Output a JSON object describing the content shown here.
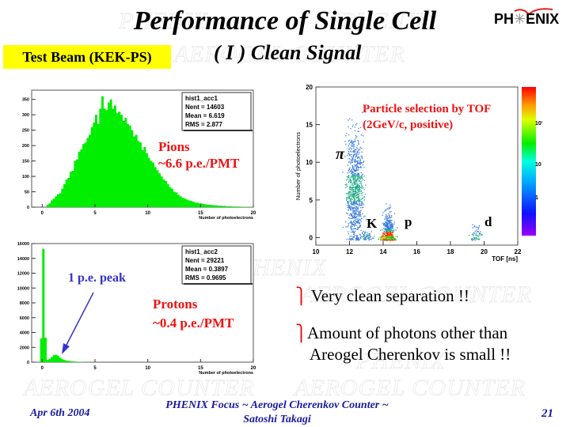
{
  "slide": {
    "title": "Performance of Single Cell",
    "subtitle": "( I ) Clean Signal",
    "badge": "Test Beam (KEK-PS)",
    "logo_text": "PH ENIX",
    "watermark": [
      "PHENIX",
      "AEROGEL COUNTER"
    ],
    "bullets": [
      {
        "marker": "⎫",
        "lines": [
          "Very clean separation !!"
        ]
      },
      {
        "marker": "⎫",
        "lines": [
          "Amount of photons other than",
          "Areogel Cherenkov is small !!"
        ]
      }
    ],
    "footer": {
      "date": "Apr 6th 2004",
      "center_line1": "PHENIX Focus  ~ Aerogel Cherenkov Counter ~",
      "center_line2": "Satoshi Takagi",
      "page": "21"
    },
    "colors": {
      "badge_bg": "#ffff00",
      "annotation_red": "#ee1111",
      "annotation_blue": "#3333cc",
      "footer_blue": "#1a1aa0",
      "hist_fill": "#00ee00"
    }
  },
  "chart_data": [
    {
      "type": "bar",
      "title": "hist1_acc1",
      "stats": {
        "name": "hist1_acc1",
        "nent": "Nent = 14603",
        "mean": "Mean  = 6.619",
        "rms": "RMS   = 2.877"
      },
      "xlabel": "Number of photoelectrons",
      "ylabel": "",
      "xlim": [
        -1,
        20
      ],
      "ylim": [
        0,
        380
      ],
      "xticks": [
        0,
        5,
        10,
        15,
        20
      ],
      "yticks": [
        0,
        50,
        100,
        150,
        200,
        250,
        300,
        350
      ],
      "annotation": [
        "Pions",
        "~6.6 p.e./PMT"
      ],
      "bin_width": 0.2,
      "x_start": 0.4,
      "values": [
        8,
        12,
        22,
        28,
        35,
        42,
        45,
        60,
        75,
        90,
        95,
        115,
        118,
        150,
        155,
        180,
        188,
        205,
        210,
        225,
        235,
        260,
        275,
        300,
        270,
        320,
        360,
        320,
        315,
        340,
        350,
        320,
        330,
        305,
        310,
        300,
        280,
        290,
        270,
        265,
        250,
        230,
        235,
        215,
        210,
        185,
        195,
        175,
        160,
        150,
        145,
        130,
        120,
        110,
        100,
        90,
        85,
        75,
        65,
        60,
        50,
        48,
        40,
        35,
        30,
        28,
        25,
        22,
        20,
        18,
        15,
        14,
        12,
        12,
        10,
        9,
        8,
        8,
        7,
        6,
        6,
        5,
        5,
        4,
        4,
        3,
        3,
        3,
        2,
        2,
        2,
        2,
        1,
        1,
        1,
        1,
        1,
        1
      ]
    },
    {
      "type": "bar",
      "title": "hist1_acc2",
      "stats": {
        "name": "hist1_acc2",
        "nent": "Nent = 29221",
        "mean": "Mean  = 0.3897",
        "rms": "RMS   = 0.9695"
      },
      "xlabel": "Number of photoelectrons",
      "ylabel": "",
      "xlim": [
        -1,
        20
      ],
      "ylim": [
        0,
        16000
      ],
      "xticks": [
        0,
        5,
        10,
        15,
        20
      ],
      "yticks": [
        0,
        2000,
        4000,
        6000,
        8000,
        10000,
        12000,
        14000,
        16000
      ],
      "annotation": [
        "Protons",
        "~0.4 p.e./PMT"
      ],
      "arrow_label": "1 p.e. peak",
      "bin_width": 0.2,
      "x_start": -0.2,
      "values": [
        3200,
        15300,
        3300,
        300,
        450,
        700,
        950,
        1000,
        850,
        600,
        400,
        300,
        200,
        150,
        120,
        100,
        80,
        60,
        50,
        40,
        30,
        25,
        20,
        15,
        12,
        10,
        8,
        6,
        5,
        4,
        3,
        2,
        2,
        1,
        1
      ]
    },
    {
      "type": "heatmap",
      "title": "Particle selection by TOF",
      "subtitle": "(2GeV/c, positive)",
      "xlabel": "TOF [ns]",
      "ylabel": "Number of photoelectrons",
      "xlim": [
        10,
        22
      ],
      "ylim": [
        -1,
        20
      ],
      "xticks": [
        10,
        12,
        14,
        16,
        18,
        20,
        22
      ],
      "yticks": [
        0,
        5,
        10,
        15,
        20
      ],
      "colorbar_ticks": [
        "1",
        "10",
        "10²"
      ],
      "clusters": [
        {
          "label": "π",
          "tof": 12.3,
          "pe_center": 6.6,
          "pe_spread": 3.5
        },
        {
          "label": "K",
          "tof": 13.0,
          "pe_center": 0.2,
          "pe_spread": 0.3
        },
        {
          "label": "p",
          "tof": 14.3,
          "pe_center": 0.4,
          "pe_spread": 1.5
        },
        {
          "label": "d",
          "tof": 19.5,
          "pe_center": 0.2,
          "pe_spread": 0.8
        }
      ]
    }
  ]
}
